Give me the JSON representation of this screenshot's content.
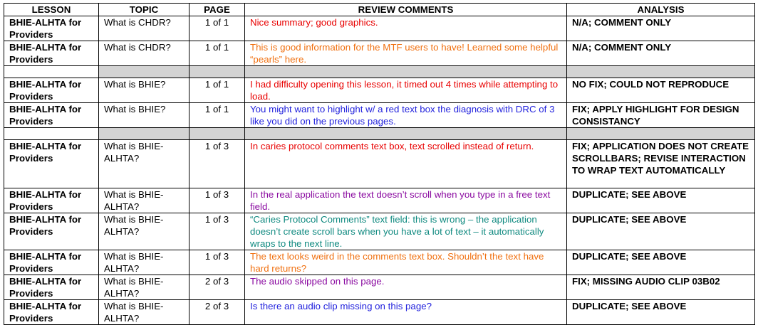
{
  "headers": [
    "LESSON",
    "TOPIC",
    "PAGE",
    "REVIEW COMMENTS",
    "ANALYSIS"
  ],
  "colors": {
    "red": "#e80000",
    "orange": "#f07010",
    "blue": "#2222dd",
    "purple": "#8a0aa0",
    "teal": "#108a80",
    "separator": "#d3d3d3"
  },
  "rows": [
    {
      "type": "data",
      "lesson": "BHIE-ALHTA for Providers",
      "topic": "What is CHDR?",
      "page": "1 of 1",
      "comment": "Nice summary; good graphics.",
      "comment_color": "red",
      "analysis": "N/A; COMMENT ONLY",
      "h": 34
    },
    {
      "type": "data",
      "lesson": "BHIE-ALHTA for Providers",
      "topic": "What is CHDR?",
      "page": "1 of 1",
      "comment": "This is good information for the MTF users to have! Learned some helpful “pearls” here.",
      "comment_color": "orange",
      "analysis": "N/A; COMMENT ONLY",
      "h": 35
    },
    {
      "type": "gap"
    },
    {
      "type": "data",
      "lesson": "BHIE-ALHTA for Providers",
      "topic": "What is BHIE?",
      "page": "1 of 1",
      "comment": "I had difficulty opening this lesson, it timed out 4 times while attempting to load.",
      "comment_color": "red",
      "analysis": "NO FIX; COULD NOT REPRODUCE",
      "h": 35
    },
    {
      "type": "data",
      "lesson": "BHIE-ALHTA for Providers",
      "topic": "What is BHIE?",
      "page": "1 of 1",
      "comment": "You might want to highlight w/ a red text box the diagnosis with DRC of 3 like you did on the previous pages.",
      "comment_color": "blue",
      "analysis": "FIX; APPLY HIGHLIGHT FOR DESIGN CONSISTANCY",
      "h": 35
    },
    {
      "type": "gap"
    },
    {
      "type": "data",
      "lesson": "BHIE-ALHTA for Providers",
      "topic": "What is BHIE-ALHTA?",
      "page": "1 of 3",
      "comment": "In caries protocol comments text box, text scrolled instead of return.",
      "comment_color": "red",
      "analysis": "FIX; APPLICATION DOES NOT CREATE SCROLLBARS; REVISE INTERACTION TO WRAP TEXT AUTOMATICALLY",
      "h": 68
    },
    {
      "type": "data",
      "lesson": "BHIE-ALHTA for Providers",
      "topic": "What is BHIE-ALHTA?",
      "page": "1 of 3",
      "comment": "In the real application the text doesn’t scroll when you type in a free text field.",
      "comment_color": "purple",
      "analysis": "DUPLICATE; SEE ABOVE",
      "h": 35
    },
    {
      "type": "data",
      "lesson": "BHIE-ALHTA for Providers",
      "topic": "What is BHIE-ALHTA?",
      "page": "1 of 3",
      "comment": "“Caries Protocol Comments” text field: this is wrong – the application doesn’t create scroll bars when you have a lot of text – it automatically wraps to the next line.",
      "comment_color": "teal",
      "analysis": "DUPLICATE; SEE ABOVE",
      "h": 52
    },
    {
      "type": "data",
      "lesson": "BHIE-ALHTA for Providers",
      "topic": "What is BHIE-ALHTA?",
      "page": "1 of 3",
      "comment": "The text looks weird in the comments text box. Shouldn’t the text have hard returns?",
      "comment_color": "orange",
      "analysis": "DUPLICATE; SEE ABOVE",
      "h": 34
    },
    {
      "type": "data",
      "lesson": "BHIE-ALHTA for Providers",
      "topic": "What is BHIE-ALHTA?",
      "page": "2 of 3",
      "comment": "The audio skipped on this page.",
      "comment_color": "purple",
      "analysis": "FIX; MISSING AUDIO CLIP 03B02",
      "h": 35
    },
    {
      "type": "data",
      "lesson": "BHIE-ALHTA for Providers",
      "topic": "What is BHIE-ALHTA?",
      "page": "2 of 3",
      "comment": "Is there an audio clip missing on this page?",
      "comment_color": "blue",
      "analysis": "DUPLICATE; SEE ABOVE",
      "h": 34
    }
  ]
}
